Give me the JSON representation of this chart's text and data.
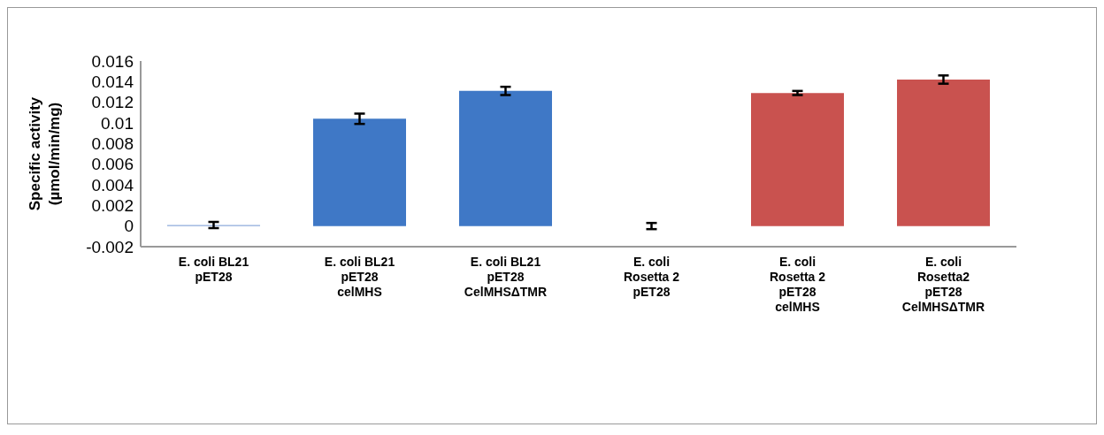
{
  "chart_data": {
    "type": "bar",
    "ylabel": "Specific activity\n(µmol/min/mg)",
    "categories": [
      "E. coli BL21\npET28",
      "E. coli BL21\npET28\ncelMHS",
      "E. coli BL21\npET28\nCelMHSΔTMR",
      "E. coli\nRosetta 2\npET28",
      "E. coli\nRosetta 2\npET28\ncelMHS",
      "E. coli\nRosetta2\npET28\nCelMHSΔTMR"
    ],
    "values": [
      0.0001,
      0.0104,
      0.0131,
      0,
      0.0129,
      0.0142
    ],
    "errors": [
      0.0003,
      0.0005,
      0.0004,
      0.0003,
      0.0002,
      0.0004
    ],
    "colors": [
      "#8eaadb",
      "#3f78c6",
      "#3f78c6",
      "#3f78c6",
      "#c9524f",
      "#c9524f"
    ],
    "ylim": [
      -0.002,
      0.016
    ],
    "yticks": [
      -0.002,
      0,
      0.002,
      0.004,
      0.006,
      0.008,
      0.01,
      0.012,
      0.014,
      0.016
    ],
    "grid": false,
    "legend": false
  }
}
